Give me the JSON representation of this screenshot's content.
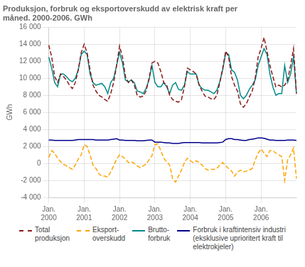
{
  "chart_data": {
    "type": "line",
    "title": "Produksjon, forbruk og eksportoverskudd av elektrisk kraft per\nmåned. 2000-2006. GWh",
    "ylabel": "GWh",
    "categories": [
      "Jan.\n2000",
      null,
      null,
      null,
      null,
      null,
      null,
      null,
      null,
      null,
      null,
      null,
      "Jan.\n2001",
      null,
      null,
      null,
      null,
      null,
      null,
      null,
      null,
      null,
      null,
      null,
      "Jan.\n2002",
      null,
      null,
      null,
      null,
      null,
      null,
      null,
      null,
      null,
      null,
      null,
      "Jan.\n2003",
      null,
      null,
      null,
      null,
      null,
      null,
      null,
      null,
      null,
      null,
      null,
      "Jan.\n2004",
      null,
      null,
      null,
      null,
      null,
      null,
      null,
      null,
      null,
      null,
      null,
      "Jan.\n2005",
      null,
      null,
      null,
      null,
      null,
      null,
      null,
      null,
      null,
      null,
      null,
      "Jan.\n2006",
      null,
      null,
      null,
      null,
      null,
      null,
      null,
      null,
      null,
      null,
      null,
      null
    ],
    "series": [
      {
        "name": "Total\nproduksjon",
        "color": "#8B1A1A",
        "line_style": "dashed",
        "values": [
          13900,
          12500,
          10200,
          9500,
          10500,
          10200,
          9800,
          9200,
          8800,
          9500,
          11000,
          13000,
          14000,
          13000,
          11000,
          9200,
          8500,
          8000,
          7800,
          7500,
          7300,
          8200,
          9500,
          11500,
          13800,
          12500,
          10200,
          9500,
          9800,
          9200,
          8000,
          7800,
          7900,
          8500,
          10000,
          11800,
          12000,
          11800,
          10800,
          9500,
          9200,
          8000,
          7500,
          7300,
          7200,
          7500,
          9000,
          11200,
          11000,
          10800,
          10500,
          9200,
          8500,
          7900,
          7800,
          7600,
          7500,
          8000,
          9500,
          11200,
          13200,
          12500,
          10200,
          9200,
          8500,
          7000,
          6600,
          7000,
          7800,
          8500,
          10000,
          12500,
          13500,
          14800,
          13200,
          11500,
          10200,
          9000,
          9200,
          9000,
          9200,
          9800,
          11500,
          13500,
          8200
        ]
      },
      {
        "name": "Eksport-\noverskudd",
        "color": "#FFA500",
        "line_style": "dashed",
        "values": [
          700,
          1500,
          1200,
          600,
          200,
          -100,
          -300,
          -500,
          -700,
          -200,
          500,
          1000,
          2200,
          2000,
          1000,
          -200,
          -600,
          -1200,
          -1500,
          -1500,
          -1600,
          -1000,
          -300,
          500,
          1000,
          800,
          500,
          100,
          200,
          0,
          -300,
          -500,
          -300,
          -100,
          400,
          900,
          2200,
          2300,
          1500,
          600,
          200,
          -200,
          -1800,
          -2200,
          -1500,
          -800,
          100,
          600,
          300,
          100,
          300,
          100,
          -200,
          -600,
          -800,
          -700,
          -700,
          -600,
          -200,
          100,
          -300,
          -600,
          -900,
          -1500,
          -1000,
          -800,
          -1000,
          -900,
          -800,
          -600,
          400,
          1200,
          1700,
          1200,
          800,
          1500,
          1500,
          1200,
          1000,
          800,
          -2000,
          400,
          1000,
          1800,
          -1800
        ]
      },
      {
        "name": "Brutto-\nforbruk",
        "color": "#008B8B",
        "line_style": "solid",
        "values": [
          12500,
          11200,
          9500,
          9000,
          10500,
          10500,
          10200,
          9800,
          9600,
          10000,
          11000,
          12800,
          13200,
          12800,
          10500,
          9500,
          9200,
          9300,
          9400,
          9000,
          8200,
          9500,
          10000,
          11500,
          13100,
          11800,
          9800,
          9600,
          9800,
          9500,
          8500,
          8400,
          8200,
          8800,
          9800,
          11500,
          9500,
          9000,
          9000,
          9500,
          9000,
          8200,
          9200,
          9500,
          8700,
          8600,
          9200,
          10800,
          10500,
          10500,
          10500,
          9200,
          8800,
          8600,
          8600,
          8400,
          8200,
          8600,
          9600,
          11000,
          13000,
          12800,
          11000,
          10700,
          9800,
          8000,
          7600,
          8000,
          8700,
          9200,
          9800,
          11500,
          12500,
          13500,
          12800,
          10500,
          9000,
          8000,
          8200,
          8200,
          11500,
          9500,
          10500,
          12500,
          8200
        ]
      },
      {
        "name": "Forbruk i kraftintensiv industri\n(eksklusive uprioritert kraft til\nelektrokjeler)",
        "color": "#00008B",
        "line_style": "solid",
        "values": [
          2750,
          2750,
          2700,
          2700,
          2700,
          2700,
          2700,
          2700,
          2700,
          2750,
          2800,
          2800,
          2800,
          2800,
          2800,
          2800,
          2750,
          2750,
          2750,
          2750,
          2750,
          2800,
          2850,
          2900,
          2750,
          2750,
          2700,
          2700,
          2700,
          2700,
          2650,
          2650,
          2650,
          2700,
          2750,
          2750,
          2500,
          2500,
          2500,
          2450,
          2400,
          2400,
          2350,
          2350,
          2350,
          2400,
          2450,
          2450,
          2450,
          2450,
          2450,
          2450,
          2400,
          2400,
          2400,
          2400,
          2400,
          2400,
          2450,
          2500,
          2800,
          2900,
          2900,
          2800,
          2800,
          2750,
          2700,
          2700,
          2800,
          2850,
          2900,
          3000,
          3000,
          2950,
          2850,
          2750,
          2750,
          2700,
          2700,
          2700,
          2700,
          2750,
          2750,
          2750,
          2700
        ]
      }
    ],
    "ylim": [
      -4000,
      16000
    ],
    "yticks": [
      {
        "value": -4000,
        "label": "-4 000"
      },
      {
        "value": -2000,
        "label": "-2 000"
      },
      0,
      {
        "value": 2000,
        "label": "2 000"
      },
      {
        "value": 4000,
        "label": "4 000"
      },
      {
        "value": 6000,
        "label": "6 000"
      },
      {
        "value": 8000,
        "label": "8 000"
      },
      {
        "value": 10000,
        "label": "10 000"
      },
      {
        "value": 12000,
        "label": "12 000"
      },
      {
        "value": 14000,
        "label": "14 000"
      },
      {
        "value": 16000,
        "label": "16 000"
      }
    ],
    "grid": true,
    "legend": "bottom"
  }
}
